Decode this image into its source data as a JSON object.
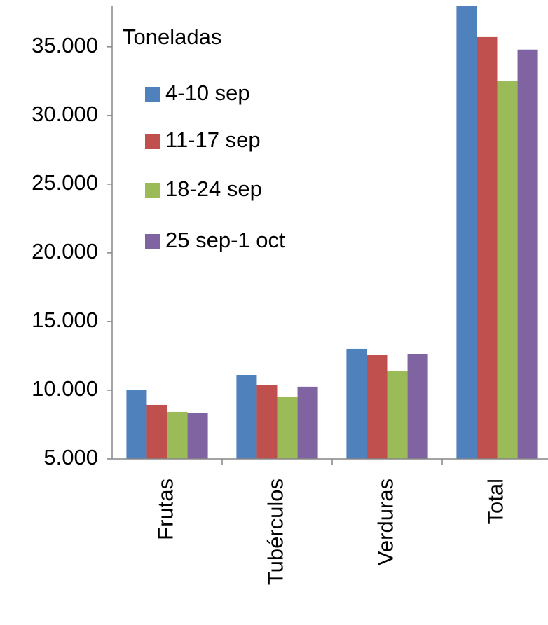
{
  "chart_data": {
    "type": "bar",
    "legend_title": "Toneladas",
    "categories": [
      "Frutas",
      "Tubérculos",
      "Verduras",
      "Total"
    ],
    "series": [
      {
        "name": "4-10 sep",
        "color": "#4f81bd",
        "values": [
          10000,
          11120,
          13010,
          38000
        ]
      },
      {
        "name": "11-17 sep",
        "color": "#c0504d",
        "values": [
          8930,
          10360,
          12550,
          35710
        ]
      },
      {
        "name": "18-24 sep",
        "color": "#9bbb59",
        "values": [
          8420,
          9490,
          11380,
          32500
        ]
      },
      {
        "name": "25 sep-1 oct",
        "color": "#8064a2",
        "values": [
          8320,
          10260,
          12650,
          34800
        ]
      }
    ],
    "ylim": [
      5000,
      38000
    ],
    "yticks": [
      {
        "value": 5000,
        "label": "5.000"
      },
      {
        "value": 10000,
        "label": "10.000"
      },
      {
        "value": 15000,
        "label": "15.000"
      },
      {
        "value": 20000,
        "label": "20.000"
      },
      {
        "value": 25000,
        "label": "25.000"
      },
      {
        "value": 30000,
        "label": "30.000"
      },
      {
        "value": 35000,
        "label": "35.000"
      }
    ],
    "legend": "upper left"
  }
}
